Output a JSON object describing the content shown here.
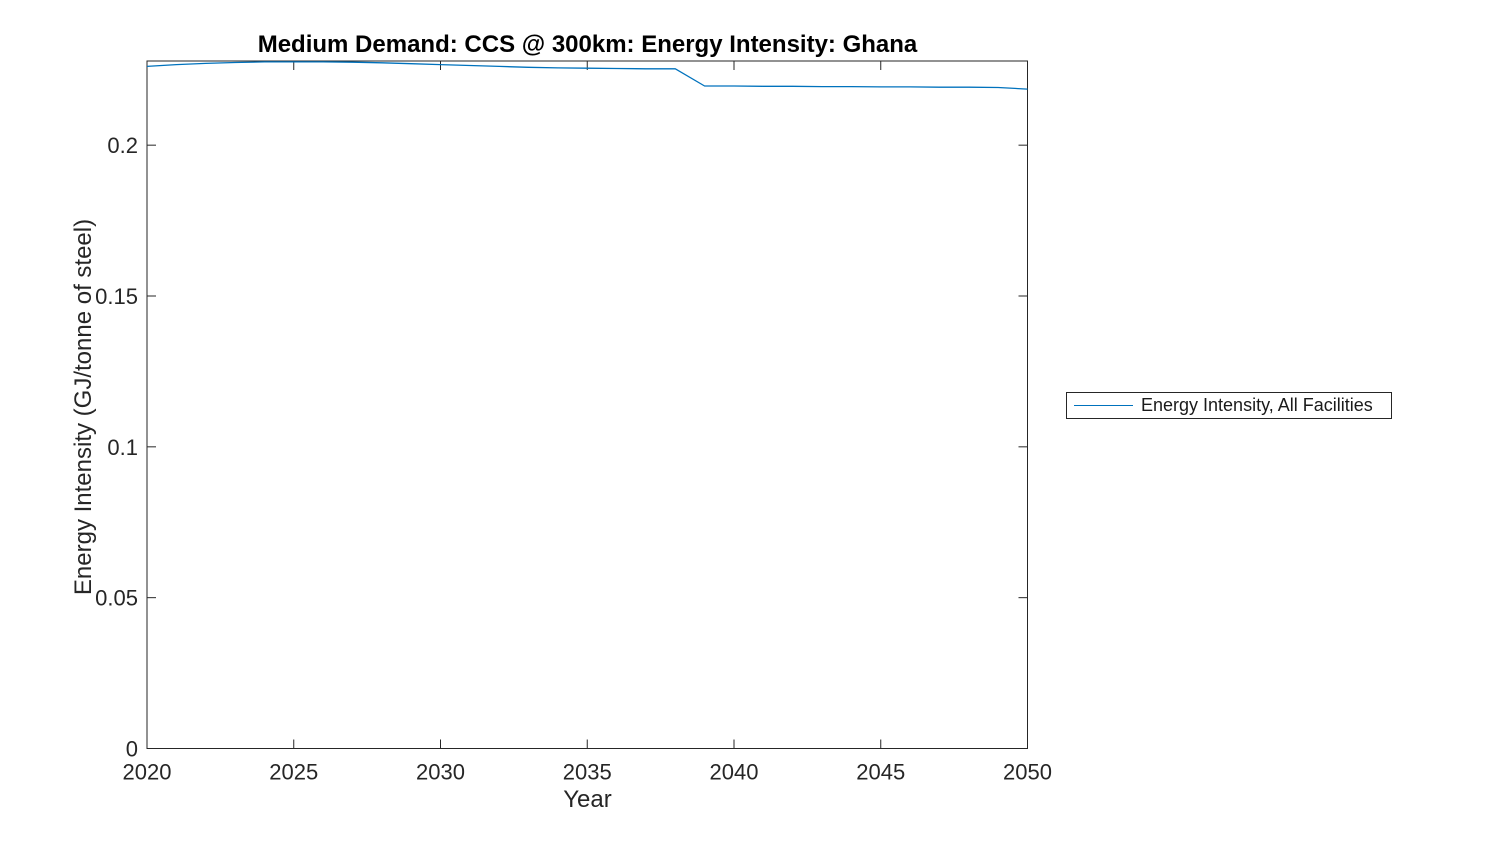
{
  "figure": {
    "title": "Medium Demand: CCS @ 300km: Energy Intensity: Ghana",
    "xlabel": "Year",
    "ylabel": "Energy Intensity (GJ/tonne of steel)"
  },
  "legend": {
    "entries": [
      {
        "label": "Energy Intensity, All Facilities",
        "color": "#0072BD"
      }
    ]
  },
  "chart_data": {
    "type": "line",
    "title": "Medium Demand: CCS @ 300km: Energy Intensity: Ghana",
    "xlabel": "Year",
    "ylabel": "Energy Intensity (GJ/tonne of steel)",
    "x": [
      2020,
      2021,
      2022,
      2023,
      2024,
      2025,
      2026,
      2027,
      2028,
      2029,
      2030,
      2031,
      2032,
      2033,
      2034,
      2035,
      2036,
      2037,
      2038,
      2039,
      2040,
      2041,
      2042,
      2043,
      2044,
      2045,
      2046,
      2047,
      2048,
      2049,
      2050
    ],
    "series": [
      {
        "name": "Energy Intensity, All Facilities",
        "color": "#0072BD",
        "values": [
          0.2261,
          0.2267,
          0.2271,
          0.2274,
          0.2276,
          0.2276,
          0.2276,
          0.2275,
          0.2273,
          0.227,
          0.2267,
          0.2264,
          0.2261,
          0.2258,
          0.2256,
          0.2255,
          0.2254,
          0.2253,
          0.2253,
          0.2196,
          0.2196,
          0.2195,
          0.2195,
          0.2194,
          0.2194,
          0.2193,
          0.2193,
          0.2192,
          0.2192,
          0.2191,
          0.2186
        ]
      }
    ],
    "xlim": [
      2020,
      2050
    ],
    "ylim": [
      0,
      0.2279
    ],
    "xticks": [
      2020,
      2025,
      2030,
      2035,
      2040,
      2045,
      2050
    ],
    "yticks": [
      0,
      0.05,
      0.1,
      0.15,
      0.2
    ],
    "ytick_labels": [
      "0",
      "0.05",
      "0.1",
      "0.15",
      "0.2"
    ],
    "grid": false,
    "legend_position": "right-outside",
    "colors": {
      "line": "#0072BD",
      "axis": "#262626",
      "text": "#262626",
      "background": "#ffffff"
    }
  }
}
